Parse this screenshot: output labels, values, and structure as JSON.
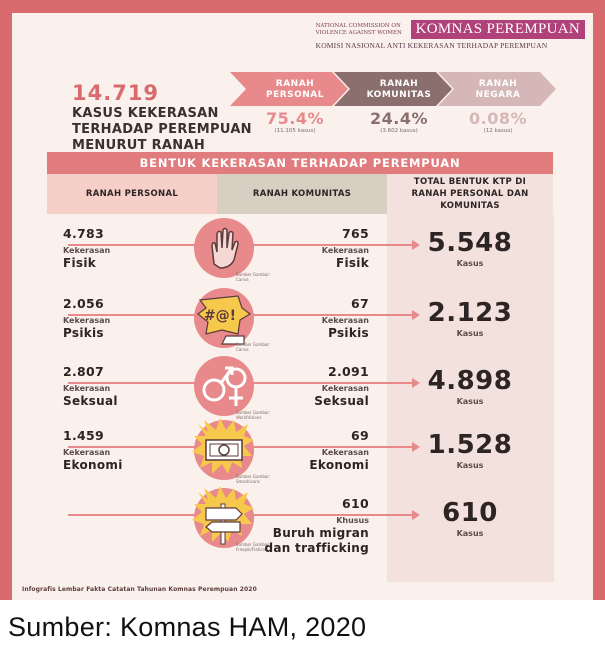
{
  "header": {
    "logo_small": "NATIONAL COMMISSION ON VIOLENCE AGAINST WOMEN",
    "logo_name": "KOMNAS PEREMPUAN",
    "logo_sub": "KOMISI NASIONAL ANTI KEKERASAN TERHADAP PEREMPUAN"
  },
  "summary": {
    "total": "14.719",
    "label": "KASUS KEKERASAN TERHADAP PEREMPUAN MENURUT RANAH"
  },
  "chart_data": {
    "type": "table",
    "title": "BENTUK KEKERASAN TERHADAP PEREMPUAN",
    "shares": [
      {
        "name": "RANAH PERSONAL",
        "percent": "75.4%",
        "cases": "(11.105 kasus)",
        "value": 75.4,
        "count": 11105,
        "color": "#e8898b"
      },
      {
        "name": "RANAH KOMUNITAS",
        "percent": "24.4%",
        "cases": "(3.602 kasus)",
        "value": 24.4,
        "count": 3602,
        "color": "#8b6e6e"
      },
      {
        "name": "RANAH NEGARA",
        "percent": "0.08%",
        "cases": "(12 kasus)",
        "value": 0.08,
        "count": 12,
        "color": "#d5b7b7"
      }
    ],
    "columns": [
      "RANAH PERSONAL",
      "RANAH KOMUNITAS",
      "TOTAL BENTUK KTP DI RANAH PERSONAL DAN KOMUNITAS"
    ],
    "rows": [
      {
        "prefix": "Kekerasan",
        "name": "Fisik",
        "personal": "4.783",
        "komunitas": "765",
        "total": "5.548",
        "unit": "Kasus",
        "icon": "hand-icon",
        "credit": "Sumber Gambar: Canva"
      },
      {
        "prefix": "Kekerasan",
        "name": "Psikis",
        "personal": "2.056",
        "komunitas": "67",
        "total": "2.123",
        "unit": "Kasus",
        "icon": "speech-bubble-icon",
        "credit": "Sumber Gambar: Canva"
      },
      {
        "prefix": "Kekerasan",
        "name": "Seksual",
        "personal": "2.807",
        "komunitas": "2.091",
        "total": "4.898",
        "unit": "Kasus",
        "icon": "gender-symbols-icon",
        "credit": "Sumber Gambar: WorldVisions"
      },
      {
        "prefix": "Kekerasan",
        "name": "Ekonomi",
        "personal": "1.459",
        "komunitas": "69",
        "total": "1.528",
        "unit": "Kasus",
        "icon": "money-icon",
        "credit": "Sumber Gambar: Smashicons"
      },
      {
        "prefix": "Khusus",
        "name": "Buruh migran dan trafficking",
        "personal": "",
        "komunitas": "610",
        "total": "610",
        "unit": "Kasus",
        "icon": "signpost-icon",
        "credit": "Sumber Gambar: Freepik/Flaticon"
      }
    ]
  },
  "footer": "Infografis Lembar Fakta Catatan Tahunan Komnas Perempuan 2020",
  "caption": "Sumber: Komnas HAM, 2020"
}
